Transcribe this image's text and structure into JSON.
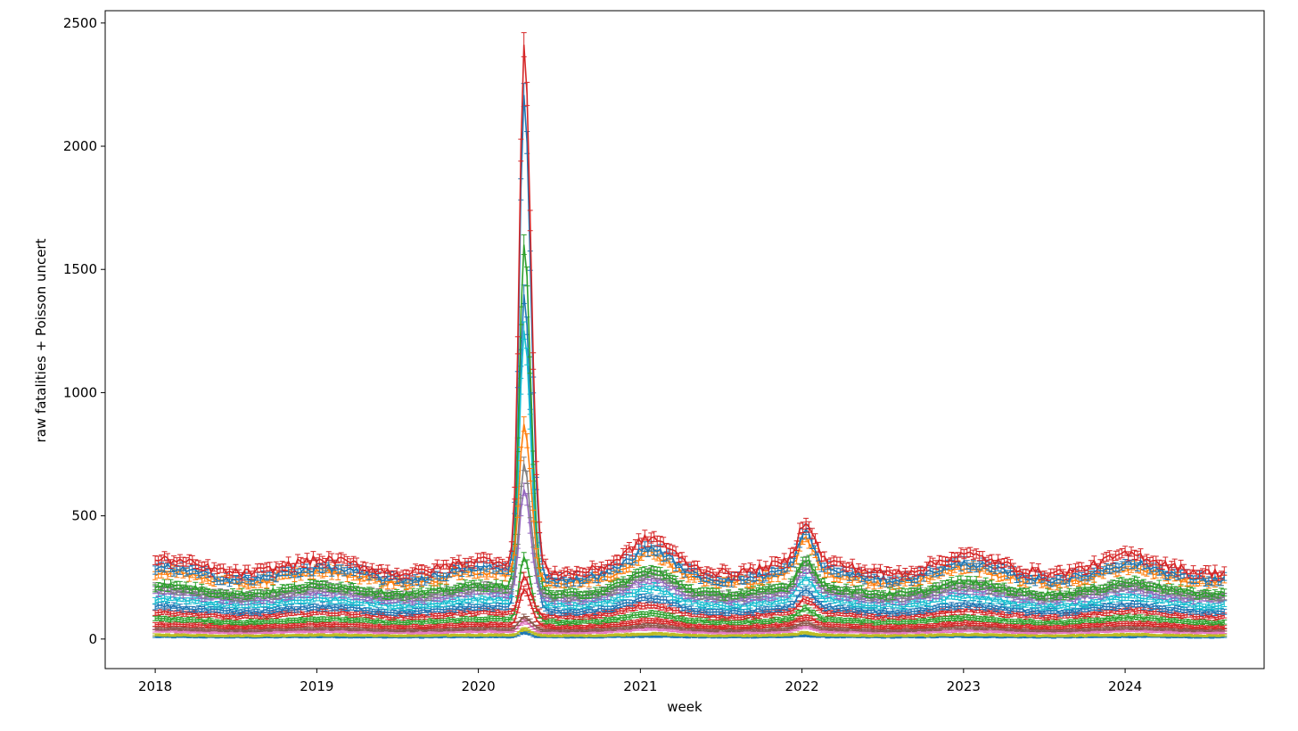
{
  "chart_data": {
    "type": "line",
    "title": "",
    "xlabel": "week",
    "ylabel": "raw fatalities + Poisson uncert",
    "xlim": [
      "2017-09-10",
      "2024-11-10"
    ],
    "ylim": [
      -120,
      2550
    ],
    "x_ticks": [
      {
        "date": "2018-01-01",
        "label": "2018"
      },
      {
        "date": "2019-01-01",
        "label": "2019"
      },
      {
        "date": "2020-01-01",
        "label": "2020"
      },
      {
        "date": "2021-01-01",
        "label": "2021"
      },
      {
        "date": "2022-01-01",
        "label": "2022"
      },
      {
        "date": "2023-01-01",
        "label": "2023"
      },
      {
        "date": "2024-01-01",
        "label": "2024"
      }
    ],
    "y_ticks": [
      0,
      500,
      1000,
      1500,
      2000,
      2500
    ],
    "y_tick_labels": [
      "0",
      "500",
      "1000",
      "1500",
      "2000",
      "2500"
    ],
    "grid": false,
    "legend": "none",
    "error_bars": "Poisson (sqrt of count)",
    "x_range": [
      "2018-01-01",
      "2024-08-15"
    ],
    "waves": [
      {
        "peak_date": "2020-04-13",
        "relative_height": 1.0
      },
      {
        "peak_date": "2021-01-25",
        "relative_height": 0.05
      },
      {
        "peak_date": "2022-01-10",
        "relative_height": 0.09
      },
      {
        "peak_date": "2022-12-28",
        "relative_height": 0.012
      },
      {
        "peak_date": "2024-01-10",
        "relative_height": 0.012
      }
    ],
    "series": [
      {
        "color": "#d62728",
        "baseline": 295,
        "spring2020_peak": 2420
      },
      {
        "color": "#1f77b4",
        "baseline": 265,
        "spring2020_peak": 2200
      },
      {
        "color": "#ff7f0e",
        "baseline": 250,
        "spring2020_peak": 880
      },
      {
        "color": "#2ca02c",
        "baseline": 200,
        "spring2020_peak": 1600
      },
      {
        "color": "#7f7f7f",
        "baseline": 190,
        "spring2020_peak": 700
      },
      {
        "color": "#9467bd",
        "baseline": 175,
        "spring2020_peak": 600
      },
      {
        "color": "#17becf",
        "baseline": 150,
        "spring2020_peak": 1250
      },
      {
        "color": "#1f77b4",
        "baseline": 120,
        "spring2020_peak": 1400
      },
      {
        "color": "#d62728",
        "baseline": 100,
        "spring2020_peak": 250
      },
      {
        "color": "#2ca02c",
        "baseline": 75,
        "spring2020_peak": 330
      },
      {
        "color": "#d62728",
        "baseline": 55,
        "spring2020_peak": 200
      },
      {
        "color": "#8c564b",
        "baseline": 40,
        "spring2020_peak": 90
      },
      {
        "color": "#e377c2",
        "baseline": 30,
        "spring2020_peak": 70
      },
      {
        "color": "#bcbd22",
        "baseline": 15,
        "spring2020_peak": 40
      },
      {
        "color": "#1f77b4",
        "baseline": 8,
        "spring2020_peak": 25
      }
    ]
  }
}
